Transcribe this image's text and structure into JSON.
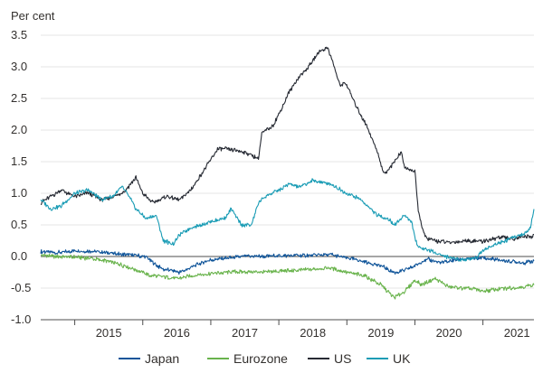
{
  "chart_data": {
    "type": "line",
    "ylabel": "Per cent",
    "ylim": [
      -1.0,
      3.5
    ],
    "xlim": [
      2014.5,
      2021.75
    ],
    "yticks": [
      "3.5",
      "3.0",
      "2.5",
      "2.0",
      "1.5",
      "1.0",
      "0.5",
      "0.0",
      "-0.5",
      "-1.0"
    ],
    "xticks": [
      "2015",
      "2016",
      "2017",
      "2018",
      "2019",
      "2020",
      "2021"
    ],
    "grid": "horizontal",
    "legend_position": "bottom",
    "series": [
      {
        "name": "Japan",
        "color": "#0f5499",
        "x": [
          2014.5,
          2014.75,
          2015.0,
          2015.25,
          2015.5,
          2015.7,
          2015.9,
          2016.05,
          2016.12,
          2016.3,
          2016.55,
          2016.75,
          2017.0,
          2017.5,
          2018.0,
          2018.5,
          2018.75,
          2019.0,
          2019.25,
          2019.5,
          2019.7,
          2019.85,
          2020.0,
          2020.1,
          2020.2,
          2020.4,
          2020.6,
          2020.8,
          2021.0,
          2021.2,
          2021.4,
          2021.6,
          2021.75
        ],
        "values": [
          0.08,
          0.06,
          0.09,
          0.08,
          0.06,
          0.03,
          0.02,
          0.0,
          -0.08,
          -0.2,
          -0.25,
          -0.15,
          -0.05,
          0.0,
          0.01,
          0.02,
          0.03,
          -0.02,
          -0.08,
          -0.15,
          -0.25,
          -0.22,
          -0.15,
          -0.08,
          -0.05,
          -0.1,
          -0.05,
          -0.04,
          -0.02,
          -0.05,
          -0.08,
          -0.1,
          -0.07
        ]
      },
      {
        "name": "Eurozone",
        "color": "#69b34c",
        "x": [
          2014.5,
          2014.75,
          2015.0,
          2015.25,
          2015.5,
          2015.75,
          2016.0,
          2016.1,
          2016.3,
          2016.5,
          2016.75,
          2017.0,
          2017.25,
          2017.5,
          2017.75,
          2018.0,
          2018.25,
          2018.5,
          2018.75,
          2019.0,
          2019.25,
          2019.5,
          2019.7,
          2019.85,
          2020.0,
          2020.1,
          2020.3,
          2020.5,
          2020.7,
          2020.9,
          2021.0,
          2021.2,
          2021.4,
          2021.6,
          2021.75
        ],
        "values": [
          0.02,
          0.0,
          -0.01,
          -0.03,
          -0.08,
          -0.15,
          -0.25,
          -0.3,
          -0.32,
          -0.35,
          -0.3,
          -0.27,
          -0.25,
          -0.24,
          -0.25,
          -0.23,
          -0.22,
          -0.2,
          -0.18,
          -0.25,
          -0.3,
          -0.45,
          -0.65,
          -0.55,
          -0.38,
          -0.45,
          -0.35,
          -0.48,
          -0.5,
          -0.52,
          -0.55,
          -0.52,
          -0.5,
          -0.48,
          -0.45
        ]
      },
      {
        "name": "US",
        "color": "#262a33",
        "x": [
          2014.5,
          2014.65,
          2014.8,
          2015.0,
          2015.2,
          2015.4,
          2015.6,
          2015.75,
          2015.9,
          2016.0,
          2016.15,
          2016.35,
          2016.55,
          2016.7,
          2016.8,
          2016.95,
          2017.1,
          2017.25,
          2017.5,
          2017.7,
          2017.75,
          2017.9,
          2018.0,
          2018.15,
          2018.3,
          2018.4,
          2018.5,
          2018.6,
          2018.72,
          2018.8,
          2018.9,
          2018.98,
          2019.15,
          2019.3,
          2019.45,
          2019.55,
          2019.7,
          2019.8,
          2019.85,
          2020.0,
          2020.05,
          2020.15,
          2020.3,
          2020.5,
          2020.75,
          2021.0,
          2021.25,
          2021.45,
          2021.6,
          2021.72,
          2021.75
        ],
        "values": [
          0.85,
          0.95,
          1.05,
          0.95,
          1.0,
          0.9,
          0.95,
          1.05,
          1.25,
          1.0,
          0.85,
          0.95,
          0.9,
          1.05,
          1.2,
          1.45,
          1.7,
          1.7,
          1.65,
          1.55,
          1.95,
          2.05,
          2.25,
          2.6,
          2.85,
          2.95,
          3.1,
          3.25,
          3.3,
          3.05,
          2.7,
          2.75,
          2.35,
          2.05,
          1.65,
          1.3,
          1.5,
          1.65,
          1.4,
          1.35,
          0.7,
          0.3,
          0.25,
          0.22,
          0.25,
          0.24,
          0.3,
          0.28,
          0.32,
          0.3,
          0.35
        ]
      },
      {
        "name": "UK",
        "color": "#1a9cb5",
        "x": [
          2014.5,
          2014.65,
          2014.8,
          2015.0,
          2015.2,
          2015.4,
          2015.55,
          2015.7,
          2015.8,
          2015.9,
          2016.05,
          2016.2,
          2016.3,
          2016.45,
          2016.55,
          2016.7,
          2016.85,
          2017.0,
          2017.2,
          2017.3,
          2017.45,
          2017.6,
          2017.7,
          2017.8,
          2018.0,
          2018.15,
          2018.3,
          2018.5,
          2018.75,
          2019.0,
          2019.2,
          2019.45,
          2019.6,
          2019.7,
          2019.85,
          2019.95,
          2020.0,
          2020.05,
          2020.2,
          2020.45,
          2020.7,
          2020.9,
          2021.0,
          2021.2,
          2021.45,
          2021.6,
          2021.7,
          2021.75
        ],
        "values": [
          0.9,
          0.75,
          0.8,
          1.0,
          1.05,
          0.9,
          0.95,
          1.1,
          0.95,
          0.75,
          0.6,
          0.65,
          0.25,
          0.2,
          0.35,
          0.45,
          0.5,
          0.55,
          0.6,
          0.75,
          0.5,
          0.5,
          0.85,
          0.95,
          1.05,
          1.15,
          1.1,
          1.2,
          1.15,
          1.0,
          0.9,
          0.65,
          0.6,
          0.5,
          0.65,
          0.55,
          0.3,
          0.15,
          0.1,
          0.0,
          -0.05,
          -0.02,
          0.1,
          0.2,
          0.3,
          0.35,
          0.45,
          0.75
        ]
      }
    ]
  }
}
